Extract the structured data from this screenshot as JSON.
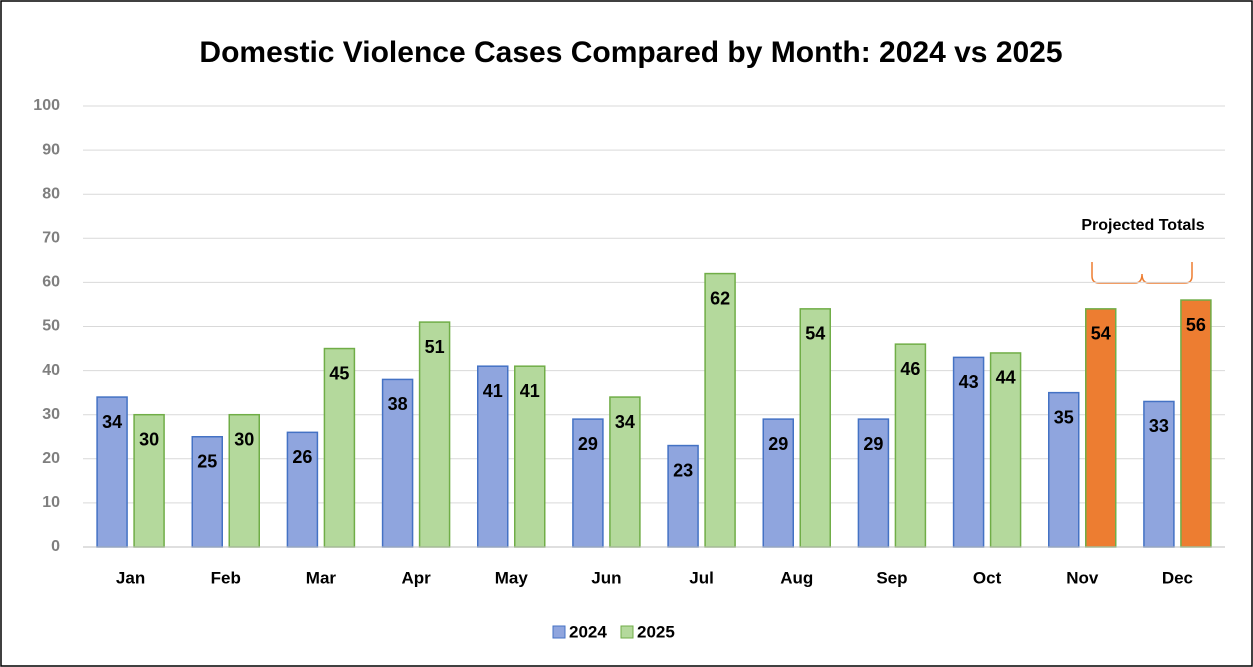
{
  "chart_data": {
    "type": "bar",
    "title": "Domestic Violence Cases Compared by Month: 2024 vs 2025",
    "categories": [
      "Jan",
      "Feb",
      "Mar",
      "Apr",
      "May",
      "Jun",
      "Jul",
      "Aug",
      "Sep",
      "Oct",
      "Nov",
      "Dec"
    ],
    "series": [
      {
        "name": "2024",
        "color": "#8fa5de",
        "edge": "#4472c4",
        "values": [
          34,
          25,
          26,
          38,
          41,
          29,
          23,
          29,
          29,
          43,
          35,
          33
        ]
      },
      {
        "name": "2025",
        "color": "#b4d99c",
        "edge": "#70ad47",
        "values": [
          30,
          30,
          45,
          51,
          41,
          34,
          62,
          54,
          46,
          44,
          54,
          56
        ],
        "colors": [
          "#b4d99c",
          "#b4d99c",
          "#b4d99c",
          "#b4d99c",
          "#b4d99c",
          "#b4d99c",
          "#b4d99c",
          "#b4d99c",
          "#b4d99c",
          "#b4d99c",
          "#ed7d31",
          "#ed7d31"
        ]
      }
    ],
    "annotation": "Projected Totals",
    "ylim": [
      0,
      100
    ],
    "yticks": [
      0,
      10,
      20,
      30,
      40,
      50,
      60,
      70,
      80,
      90,
      100
    ],
    "grid": true,
    "legend": "bottom"
  }
}
